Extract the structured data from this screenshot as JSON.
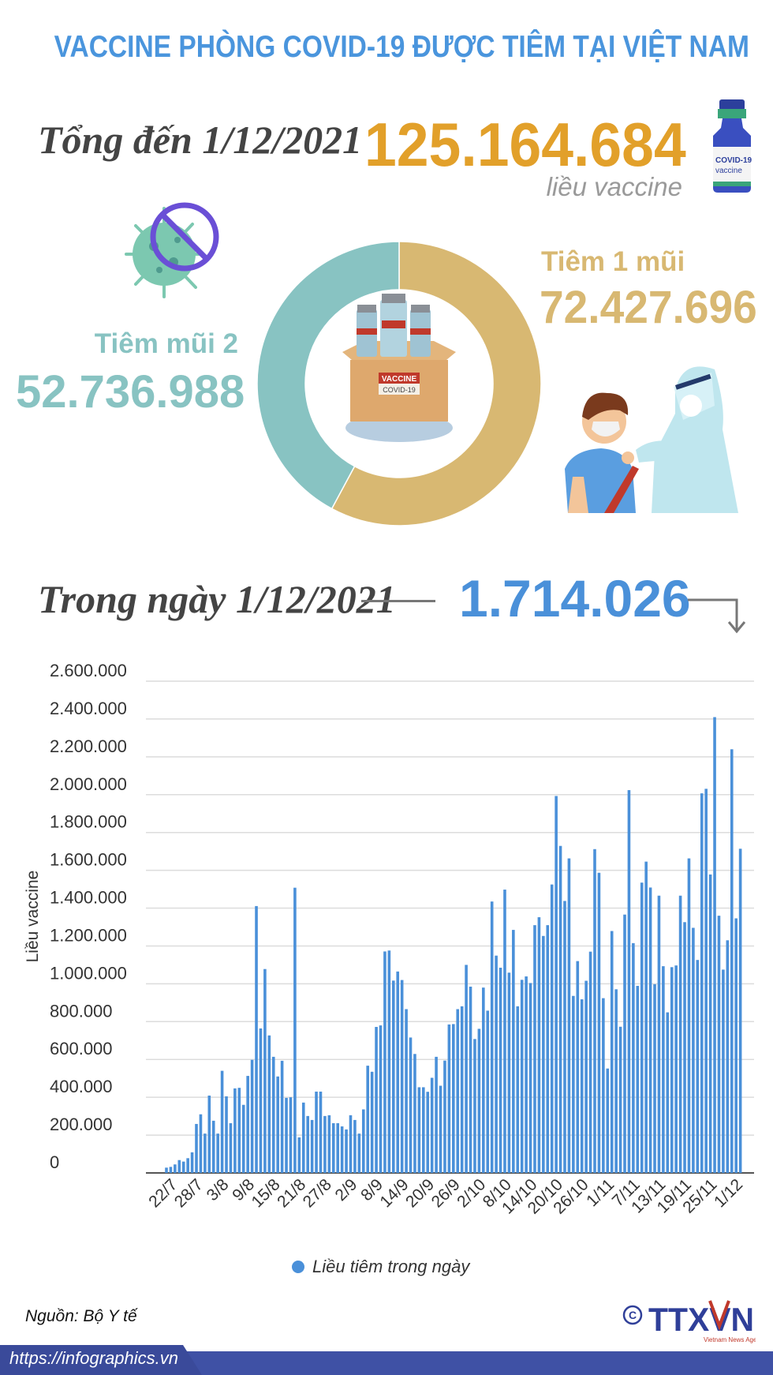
{
  "header": {
    "title": "VACCINE PHÒNG COVID-19 ĐƯỢC TIÊM TẠI VIỆT NAM"
  },
  "total": {
    "label": "Tổng đến 1/12/2021",
    "value": "125.164.684",
    "unit": "liều vaccine",
    "color": "#E2A02A"
  },
  "vial_icon": {
    "name": "vaccine-vial-icon",
    "text": "COVID-19 vaccine"
  },
  "donut": {
    "type": "pie",
    "slices": [
      {
        "label": "Tiêm 1 mũi",
        "value": 72427696,
        "display": "72.427.696",
        "color": "#D8B872"
      },
      {
        "label": "Tiêm mũi 2",
        "value": 52736988,
        "display": "52.736.988",
        "color": "#88C3C2"
      }
    ],
    "center_icon": "vaccine-box-icon",
    "box_text": "VACCINE",
    "box_subtext": "COVID-19"
  },
  "daily": {
    "label": "Trong ngày 1/12/2021",
    "value": "1.714.026",
    "color": "#4A90D9"
  },
  "chart_data": {
    "type": "bar",
    "ylabel": "Liều vaccine",
    "ylim": [
      0,
      2600000
    ],
    "yticks": [
      "0",
      "200.000",
      "400.000",
      "600.000",
      "800.000",
      "1.000.000",
      "1.200.000",
      "1.400.000",
      "1.600.000",
      "1.800.000",
      "2.000.000",
      "2.200.000",
      "2.400.000",
      "2.600.000"
    ],
    "grid": true,
    "bar_color": "#4A90D9",
    "legend": {
      "label": "Liều tiêm trong ngày",
      "placement": "bottom"
    },
    "tick_labels": [
      "22/7",
      "28/7",
      "3/8",
      "9/8",
      "15/8",
      "21/8",
      "27/8",
      "2/9",
      "8/9",
      "14/9",
      "20/9",
      "26/9",
      "2/10",
      "8/10",
      "14/10",
      "20/10",
      "26/10",
      "1/11",
      "7/11",
      "13/11",
      "19/11",
      "25/11",
      "1/12"
    ],
    "categories": [
      "20/7",
      "21/7",
      "22/7",
      "23/7",
      "24/7",
      "25/7",
      "26/7",
      "27/7",
      "28/7",
      "29/7",
      "30/7",
      "31/7",
      "1/8",
      "2/8",
      "3/8",
      "4/8",
      "5/8",
      "6/8",
      "7/8",
      "8/8",
      "9/8",
      "10/8",
      "11/8",
      "12/8",
      "13/8",
      "14/8",
      "15/8",
      "16/8",
      "17/8",
      "18/8",
      "19/8",
      "20/8",
      "21/8",
      "22/8",
      "23/8",
      "24/8",
      "25/8",
      "26/8",
      "27/8",
      "28/8",
      "29/8",
      "30/8",
      "31/8",
      "1/9",
      "2/9",
      "3/9",
      "4/9",
      "5/9",
      "6/9",
      "7/9",
      "8/9",
      "9/9",
      "10/9",
      "11/9",
      "12/9",
      "13/9",
      "14/9",
      "15/9",
      "16/9",
      "17/9",
      "18/9",
      "19/9",
      "20/9",
      "21/9",
      "22/9",
      "23/9",
      "24/9",
      "25/9",
      "26/9",
      "27/9",
      "28/9",
      "29/9",
      "30/9",
      "1/10",
      "2/10",
      "3/10",
      "4/10",
      "5/10",
      "6/10",
      "7/10",
      "8/10",
      "9/10",
      "10/10",
      "11/10",
      "12/10",
      "13/10",
      "14/10",
      "15/10",
      "16/10",
      "17/10",
      "18/10",
      "19/10",
      "20/10",
      "21/10",
      "22/10",
      "23/10",
      "24/10",
      "25/10",
      "26/10",
      "27/10",
      "28/10",
      "29/10",
      "30/10",
      "31/10",
      "1/11",
      "2/11",
      "3/11",
      "4/11",
      "5/11",
      "6/11",
      "7/11",
      "8/11",
      "9/11",
      "10/11",
      "11/11",
      "12/11",
      "13/11",
      "14/11",
      "15/11",
      "16/11",
      "17/11",
      "18/11",
      "19/11",
      "20/11",
      "21/11",
      "22/11",
      "23/11",
      "24/11",
      "25/11",
      "26/11",
      "27/11",
      "28/11",
      "29/11",
      "30/11",
      "1/12"
    ],
    "values": [
      28000,
      32000,
      45000,
      68000,
      60000,
      78000,
      109000,
      259000,
      310000,
      208000,
      409000,
      276000,
      208000,
      540000,
      405000,
      263000,
      447000,
      450000,
      360000,
      513000,
      598000,
      1411000,
      764000,
      1078000,
      727000,
      614000,
      510000,
      593000,
      397000,
      400000,
      1508000,
      188000,
      372000,
      301000,
      280000,
      430000,
      430000,
      301000,
      305000,
      263000,
      263000,
      246000,
      230000,
      305000,
      280000,
      208000,
      336000,
      567000,
      535000,
      772000,
      780000,
      1171000,
      1176000,
      1017000,
      1065000,
      1020000,
      866000,
      716000,
      629000,
      453000,
      453000,
      429000,
      503000,
      614000,
      461000,
      594000,
      785000,
      787000,
      866000,
      881000,
      1100000,
      985000,
      708000,
      762000,
      980000,
      858000,
      1435000,
      1149000,
      1085000,
      1498000,
      1059000,
      1285000,
      881000,
      1021000,
      1039000,
      1004000,
      1310000,
      1352000,
      1253000,
      1310000,
      1525000,
      1993000,
      1729000,
      1438000,
      1663000,
      936000,
      1120000,
      918000,
      1016000,
      1170000,
      1712000,
      1587000,
      924000,
      552000,
      1279000,
      971000,
      773000,
      1366000,
      2024000,
      1215000,
      989000,
      1535000,
      1646000,
      1509000,
      998000,
      1466000,
      1093000,
      849000,
      1088000,
      1097000,
      1466000,
      1326000,
      1663000,
      1296000,
      1126000,
      2007000,
      2031000,
      1578000,
      2410000,
      1360000,
      1075000,
      1230000,
      2240000,
      1346000,
      1714026
    ]
  },
  "footer": {
    "source": "Nguồn: Bộ Y tế",
    "url": "https://infographics.vn",
    "logo_text": "TTXVN",
    "logo_subtext": "Vietnam News Agency",
    "copyright": "©",
    "color": "#3F51A5"
  }
}
